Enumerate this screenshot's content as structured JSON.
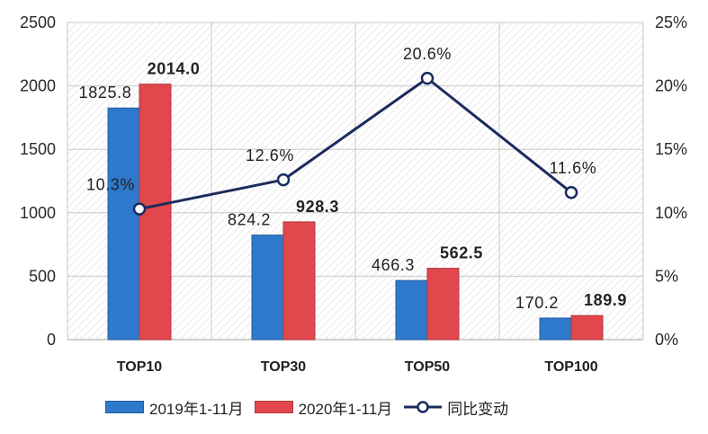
{
  "chart_data": {
    "type": "bar",
    "categories": [
      "TOP10",
      "TOP30",
      "TOP50",
      "TOP100"
    ],
    "series": [
      {
        "name": "2019年1-11月",
        "type": "bar",
        "axis": "left",
        "color": "#2E79CB",
        "values": [
          1825.8,
          824.2,
          466.3,
          170.2
        ],
        "labels": [
          "1825.8",
          "824.2",
          "466.3",
          "170.2"
        ]
      },
      {
        "name": "2020年1-11月",
        "type": "bar",
        "axis": "left",
        "color": "#E2474D",
        "values": [
          2014.0,
          928.3,
          562.5,
          189.9
        ],
        "labels": [
          "2014.0",
          "928.3",
          "562.5",
          "189.9"
        ]
      },
      {
        "name": "同比变动",
        "type": "line",
        "axis": "right",
        "color": "#1B2B5E",
        "values": [
          10.3,
          12.6,
          20.6,
          11.6
        ],
        "labels": [
          "10.3%",
          "12.6%",
          "20.6%",
          "11.6%"
        ]
      }
    ],
    "ylim": [
      0,
      2500
    ],
    "y_ticks": [
      0,
      500,
      1000,
      1500,
      2000,
      2500
    ],
    "y2lim": [
      0,
      25
    ],
    "y2_ticks": [
      0,
      5,
      10,
      15,
      20,
      25
    ],
    "y2_tick_labels": [
      "0%",
      "5%",
      "10%",
      "15%",
      "20%",
      "25%"
    ],
    "grid": true,
    "legend": "bottom"
  }
}
